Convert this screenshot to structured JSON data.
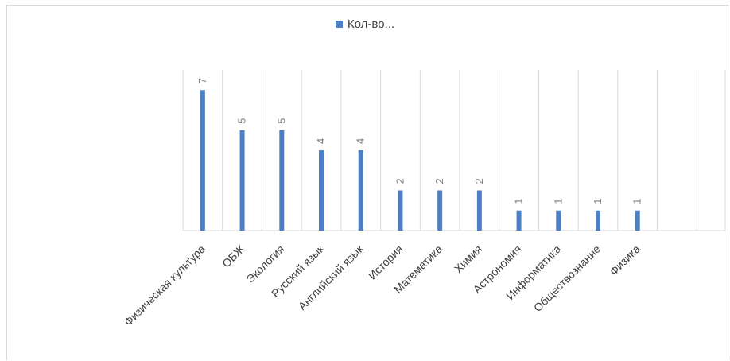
{
  "chart_data": {
    "type": "bar",
    "categories": [
      "Физическая культура",
      "ОБЖ",
      "Экология",
      "Русский язык",
      "Английский язык",
      "История",
      "Математика",
      "Химия",
      "Астрономия",
      "Информатика",
      "Обществознание",
      "Физика",
      "",
      ""
    ],
    "series": [
      {
        "name": "Кол-во...",
        "values": [
          7,
          5,
          5,
          4,
          4,
          2,
          2,
          2,
          1,
          1,
          1,
          1,
          null,
          null
        ]
      }
    ],
    "ylim": [
      0,
      8
    ],
    "grid": "vertical",
    "legend": "top",
    "colors": {
      "bar": "#4e7fc2",
      "grid": "#d9d9d9",
      "axis": "#d9d9d9",
      "text": "#404040",
      "label": "#7f7f7f"
    }
  }
}
